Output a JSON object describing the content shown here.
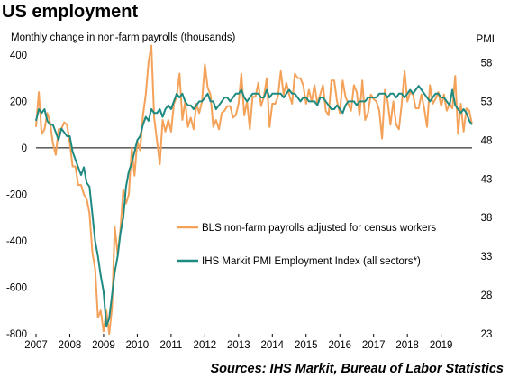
{
  "chart_data": {
    "type": "line",
    "title": "US employment",
    "ylabel": "Monthly change in non-farm payrolls (thousands)",
    "y2label": "PMI",
    "source": "Sources: IHS Markit, Bureau of Labor Statistics",
    "x_start": "2007-01",
    "x_end": "2019-09",
    "xlim": [
      "2007-01",
      "2019-12"
    ],
    "ylim": [
      -800,
      450
    ],
    "y2lim": [
      23,
      60.5
    ],
    "x_ticks": [
      "2007",
      "2008",
      "2009",
      "2010",
      "2011",
      "2012",
      "2013",
      "2014",
      "2015",
      "2016",
      "2017",
      "2018",
      "2019"
    ],
    "y_ticks": [
      "400",
      "200",
      "0",
      "-200",
      "-400",
      "-600",
      "-800"
    ],
    "y_tick_values": [
      400,
      200,
      0,
      -200,
      -400,
      -600,
      -800
    ],
    "y2_ticks": [
      "58",
      "53",
      "48",
      "43",
      "38",
      "33",
      "28",
      "23"
    ],
    "y2_tick_values": [
      58,
      53,
      48,
      43,
      38,
      33,
      28,
      23
    ],
    "legend_position": "center-right",
    "grid": false,
    "series": [
      {
        "name": "BLS non-farm payrolls adjusted for census workers",
        "axis": "left",
        "color": "#f4a259",
        "values": [
          90,
          240,
          60,
          80,
          150,
          110,
          20,
          -30,
          80,
          80,
          110,
          100,
          20,
          -80,
          -80,
          -160,
          -160,
          -200,
          -220,
          -280,
          -450,
          -520,
          -730,
          -700,
          -790,
          -700,
          -800,
          -690,
          -340,
          -460,
          -350,
          -180,
          -240,
          -200,
          0,
          -120,
          30,
          -10,
          140,
          230,
          370,
          440,
          130,
          30,
          -70,
          120,
          70,
          120,
          70,
          190,
          220,
          320,
          120,
          200,
          90,
          130,
          80,
          190,
          150,
          200,
          360,
          260,
          230,
          90,
          120,
          80,
          150,
          160,
          180,
          180,
          130,
          140,
          190,
          320,
          140,
          200,
          80,
          220,
          220,
          280,
          180,
          220,
          300,
          90,
          190,
          190,
          220,
          330,
          230,
          280,
          230,
          190,
          320,
          300,
          300,
          270,
          190,
          250,
          200,
          270,
          190,
          230,
          270,
          160,
          140,
          290,
          290,
          200,
          150,
          290,
          220,
          190,
          160,
          270,
          240,
          140,
          290,
          120,
          150,
          230,
          210,
          200,
          160,
          40,
          250,
          200,
          100,
          200,
          100,
          80,
          190,
          330,
          200,
          240,
          230,
          170,
          170,
          230,
          170,
          90,
          270,
          190,
          210,
          240,
          180,
          230,
          160,
          190,
          170,
          310,
          60,
          190,
          70,
          170,
          160,
          100
        ]
      },
      {
        "name": "IHS Markit PMI Employment Index (all sectors*)",
        "axis": "right",
        "color": "#1e8a80",
        "values": [
          50.5,
          52,
          51.5,
          52,
          50.5,
          50,
          50,
          49,
          48,
          49.5,
          49,
          48.5,
          48.5,
          46.5,
          45.5,
          44.5,
          43.5,
          44.5,
          42.5,
          42,
          38.5,
          35,
          33,
          30.5,
          28.5,
          24,
          25,
          28,
          31,
          33,
          36,
          38,
          42,
          44,
          45,
          46.5,
          48,
          48.5,
          50,
          51,
          50.5,
          52,
          51.5,
          51.5,
          52,
          51,
          52,
          52.5,
          52,
          53,
          54,
          53.5,
          54,
          53,
          52.5,
          52.5,
          52,
          52.5,
          53,
          53,
          53.5,
          54,
          53,
          53,
          52,
          52.5,
          53,
          53.5,
          53.5,
          53,
          53.5,
          54,
          54,
          54.5,
          53.5,
          53,
          53.5,
          54,
          54,
          54,
          53.5,
          53.5,
          54.5,
          53.5,
          54,
          54,
          54,
          54,
          53.5,
          54,
          54.5,
          54,
          54,
          53.5,
          53,
          53.5,
          53.5,
          53,
          53,
          53,
          52.5,
          53.5,
          53.5,
          53,
          52.5,
          52,
          52,
          52.5,
          52,
          51.5,
          52.5,
          53,
          53,
          53,
          52.5,
          53,
          53,
          53,
          53.5,
          53.5,
          53.5,
          53.5,
          54,
          54,
          54,
          53.5,
          54,
          54,
          53.5,
          54,
          54,
          53.5,
          54,
          54.5,
          54,
          54.5,
          55,
          54.5,
          54,
          53.5,
          53,
          53.5,
          54,
          54,
          53.5,
          53.5,
          53,
          52.5,
          54.5,
          52.5,
          52,
          51.5,
          52,
          51.5,
          50.5,
          50
        ]
      }
    ]
  }
}
